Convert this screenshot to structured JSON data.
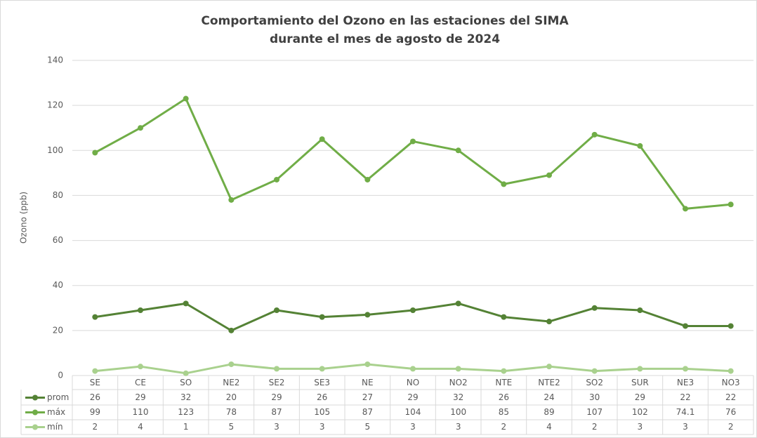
{
  "chart_data": {
    "type": "line",
    "title": [
      "Comportamiento del Ozono en las estaciones del SIMA",
      "durante el mes de agosto de 2024"
    ],
    "y_label": "Ozono (ppb)",
    "categories": [
      "SE",
      "CE",
      "SO",
      "NE2",
      "SE2",
      "SE3",
      "NE",
      "NO",
      "NO2",
      "NTE",
      "NTE2",
      "SO2",
      "SUR",
      "NE3",
      "NO3"
    ],
    "series": [
      {
        "name": "prom",
        "color": "#548235",
        "values": [
          26,
          29,
          32,
          20,
          29,
          26,
          27,
          29,
          32,
          26,
          24,
          30,
          29,
          22,
          22
        ]
      },
      {
        "name": "máx",
        "color": "#70ad47",
        "values": [
          99,
          110,
          123,
          78,
          87,
          105,
          87,
          104,
          100,
          85,
          89,
          107,
          102,
          74.1,
          76
        ]
      },
      {
        "name": "mín",
        "color": "#a9d18e",
        "values": [
          2,
          4,
          1,
          5,
          3,
          3,
          5,
          3,
          3,
          2,
          4,
          2,
          3,
          3,
          2
        ]
      }
    ],
    "ylim": [
      0,
      140
    ],
    "yticks": [
      0,
      20,
      40,
      60,
      80,
      100,
      120,
      140
    ],
    "grid": true
  }
}
